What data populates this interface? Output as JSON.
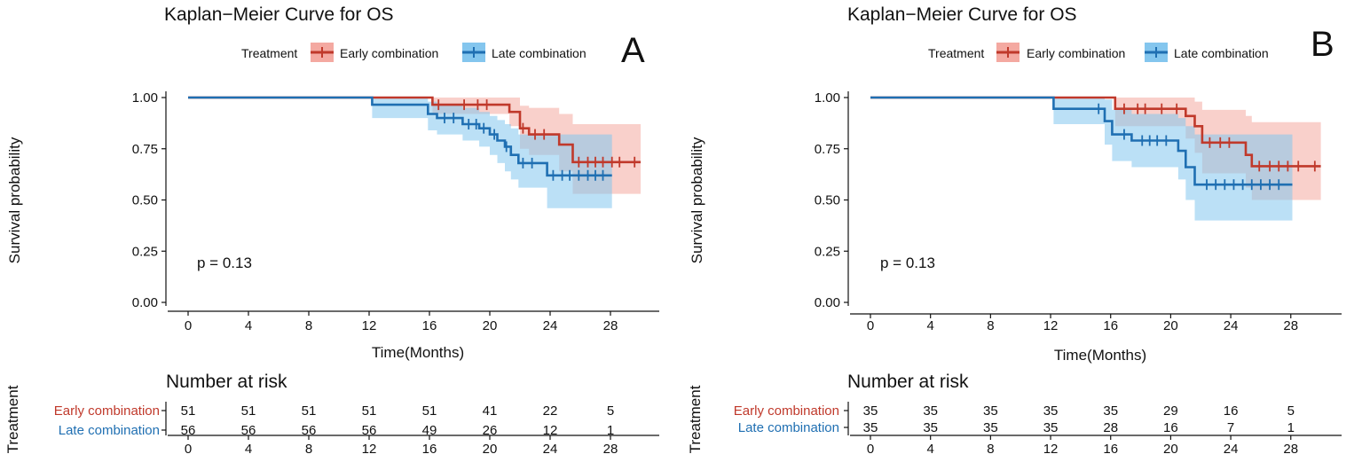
{
  "colors": {
    "early": "#c0392b",
    "late": "#1f6fb2",
    "early_band": "#f4a9a1",
    "late_band": "#84c6ee"
  },
  "chart_data": [
    {
      "type": "line",
      "panel": "A",
      "title": "Kaplan−Meier Curve for OS",
      "xlabel": "Time(Months)",
      "ylabel": "Survival probability",
      "xlim": [
        0,
        30
      ],
      "ylim": [
        0,
        1
      ],
      "x_ticks": [
        "0",
        "4",
        "8",
        "12",
        "16",
        "20",
        "24",
        "28"
      ],
      "y_ticks": [
        "0.00",
        "0.25",
        "0.50",
        "0.75",
        "1.00"
      ],
      "legend_title": "Treatment",
      "legend_position": "top",
      "p_value": "p = 0.13",
      "series": [
        {
          "name": "Early combination",
          "color": "#c0392b",
          "steps": [
            [
              0,
              1.0
            ],
            [
              16.2,
              0.965
            ],
            [
              21.3,
              0.93
            ],
            [
              22.0,
              0.85
            ],
            [
              22.6,
              0.82
            ],
            [
              24.6,
              0.77
            ],
            [
              25.5,
              0.685
            ],
            [
              30,
              0.685
            ]
          ],
          "upper": [
            [
              0,
              1.0
            ],
            [
              16.2,
              1.0
            ],
            [
              21.3,
              1.0
            ],
            [
              22.0,
              0.96
            ],
            [
              22.6,
              0.95
            ],
            [
              24.6,
              0.92
            ],
            [
              25.5,
              0.87
            ],
            [
              30,
              0.87
            ]
          ],
          "lower": [
            [
              0,
              1.0
            ],
            [
              16.2,
              0.92
            ],
            [
              21.3,
              0.86
            ],
            [
              22.0,
              0.75
            ],
            [
              22.6,
              0.72
            ],
            [
              24.6,
              0.64
            ],
            [
              25.5,
              0.53
            ],
            [
              30,
              0.53
            ]
          ],
          "censor_times": [
            16.6,
            18.3,
            19.2,
            19.8,
            22.2,
            23.0,
            23.6,
            25.9,
            26.5,
            27.0,
            27.5,
            28.1,
            28.6,
            29.6
          ]
        },
        {
          "name": "Late combination",
          "color": "#1f6fb2",
          "steps": [
            [
              0,
              1.0
            ],
            [
              12.2,
              0.965
            ],
            [
              15.9,
              0.92
            ],
            [
              16.5,
              0.9
            ],
            [
              18.2,
              0.87
            ],
            [
              19.3,
              0.85
            ],
            [
              20.0,
              0.82
            ],
            [
              20.5,
              0.79
            ],
            [
              21.0,
              0.76
            ],
            [
              21.4,
              0.72
            ],
            [
              21.9,
              0.68
            ],
            [
              23.8,
              0.62
            ],
            [
              28.1,
              0.62
            ]
          ],
          "upper": [
            [
              0,
              1.0
            ],
            [
              12.2,
              1.0
            ],
            [
              15.9,
              0.98
            ],
            [
              16.5,
              0.97
            ],
            [
              18.2,
              0.95
            ],
            [
              19.3,
              0.93
            ],
            [
              20.0,
              0.91
            ],
            [
              20.5,
              0.89
            ],
            [
              21.0,
              0.87
            ],
            [
              21.4,
              0.85
            ],
            [
              21.9,
              0.82
            ],
            [
              23.8,
              0.82
            ],
            [
              28.1,
              0.82
            ]
          ],
          "lower": [
            [
              0,
              1.0
            ],
            [
              12.2,
              0.9
            ],
            [
              15.9,
              0.84
            ],
            [
              16.5,
              0.82
            ],
            [
              18.2,
              0.79
            ],
            [
              19.3,
              0.76
            ],
            [
              20.0,
              0.72
            ],
            [
              20.5,
              0.68
            ],
            [
              21.0,
              0.64
            ],
            [
              21.4,
              0.6
            ],
            [
              21.9,
              0.56
            ],
            [
              23.8,
              0.46
            ],
            [
              28.1,
              0.46
            ]
          ],
          "censor_times": [
            17.0,
            17.6,
            18.6,
            19.1,
            19.6,
            20.3,
            21.1,
            22.2,
            22.8,
            24.2,
            24.8,
            25.3,
            25.9,
            26.5,
            27.0,
            27.5
          ]
        }
      ],
      "risk_table": {
        "title": "Number at risk",
        "axis_label": "Treatment",
        "rows": [
          {
            "name": "Early combination",
            "values": [
              "51",
              "51",
              "51",
              "51",
              "51",
              "41",
              "22",
              "5"
            ]
          },
          {
            "name": "Late combination",
            "values": [
              "56",
              "56",
              "56",
              "56",
              "49",
              "26",
              "12",
              "1"
            ]
          }
        ],
        "x_ticks": [
          "0",
          "4",
          "8",
          "12",
          "16",
          "20",
          "24",
          "28"
        ]
      }
    },
    {
      "type": "line",
      "panel": "B",
      "title": "Kaplan−Meier Curve for OS",
      "xlabel": "Time(Months)",
      "ylabel": "Survival probability",
      "xlim": [
        0,
        30
      ],
      "ylim": [
        0,
        1
      ],
      "x_ticks": [
        "0",
        "4",
        "8",
        "12",
        "16",
        "20",
        "24",
        "28"
      ],
      "y_ticks": [
        "0.00",
        "0.25",
        "0.50",
        "0.75",
        "1.00"
      ],
      "legend_title": "Treatment",
      "legend_position": "top",
      "p_value": "p = 0.13",
      "series": [
        {
          "name": "Early combination",
          "color": "#c0392b",
          "steps": [
            [
              0,
              1.0
            ],
            [
              16.3,
              0.945
            ],
            [
              21.0,
              0.91
            ],
            [
              21.6,
              0.86
            ],
            [
              22.1,
              0.78
            ],
            [
              25.0,
              0.72
            ],
            [
              25.4,
              0.665
            ],
            [
              30,
              0.665
            ]
          ],
          "upper": [
            [
              0,
              1.0
            ],
            [
              16.3,
              1.0
            ],
            [
              21.0,
              1.0
            ],
            [
              21.6,
              0.98
            ],
            [
              22.1,
              0.94
            ],
            [
              25.0,
              0.91
            ],
            [
              25.4,
              0.88
            ],
            [
              30,
              0.88
            ]
          ],
          "lower": [
            [
              0,
              1.0
            ],
            [
              16.3,
              0.86
            ],
            [
              21.0,
              0.8
            ],
            [
              21.6,
              0.73
            ],
            [
              22.1,
              0.63
            ],
            [
              25.0,
              0.56
            ],
            [
              25.4,
              0.5
            ],
            [
              30,
              0.5
            ]
          ],
          "censor_times": [
            16.9,
            17.8,
            18.3,
            19.4,
            20.4,
            22.6,
            23.3,
            23.9,
            25.9,
            26.6,
            27.2,
            27.8,
            28.5,
            29.6
          ]
        },
        {
          "name": "Late combination",
          "color": "#1f6fb2",
          "steps": [
            [
              0,
              1.0
            ],
            [
              12.2,
              0.945
            ],
            [
              15.6,
              0.885
            ],
            [
              16.1,
              0.82
            ],
            [
              17.4,
              0.79
            ],
            [
              20.5,
              0.74
            ],
            [
              21.0,
              0.66
            ],
            [
              21.6,
              0.575
            ],
            [
              28.1,
              0.575
            ]
          ],
          "upper": [
            [
              0,
              1.0
            ],
            [
              12.2,
              1.0
            ],
            [
              15.6,
              0.99
            ],
            [
              16.1,
              0.94
            ],
            [
              17.4,
              0.92
            ],
            [
              20.5,
              0.9
            ],
            [
              21.0,
              0.86
            ],
            [
              21.6,
              0.82
            ],
            [
              28.1,
              0.82
            ]
          ],
          "lower": [
            [
              0,
              1.0
            ],
            [
              12.2,
              0.87
            ],
            [
              15.6,
              0.77
            ],
            [
              16.1,
              0.69
            ],
            [
              17.4,
              0.66
            ],
            [
              20.5,
              0.6
            ],
            [
              21.0,
              0.5
            ],
            [
              21.6,
              0.4
            ],
            [
              28.1,
              0.4
            ]
          ],
          "censor_times": [
            15.2,
            16.9,
            18.1,
            18.6,
            19.1,
            19.7,
            22.4,
            23.0,
            23.6,
            24.2,
            24.8,
            25.4,
            26.0,
            26.6,
            27.2
          ]
        }
      ],
      "risk_table": {
        "title": "Number at risk",
        "axis_label": "Treatment",
        "rows": [
          {
            "name": "Early combination",
            "values": [
              "35",
              "35",
              "35",
              "35",
              "35",
              "29",
              "16",
              "5"
            ]
          },
          {
            "name": "Late combination",
            "values": [
              "35",
              "35",
              "35",
              "35",
              "28",
              "16",
              "7",
              "1"
            ]
          }
        ],
        "x_ticks": [
          "0",
          "4",
          "8",
          "12",
          "16",
          "20",
          "24",
          "28"
        ]
      }
    }
  ]
}
